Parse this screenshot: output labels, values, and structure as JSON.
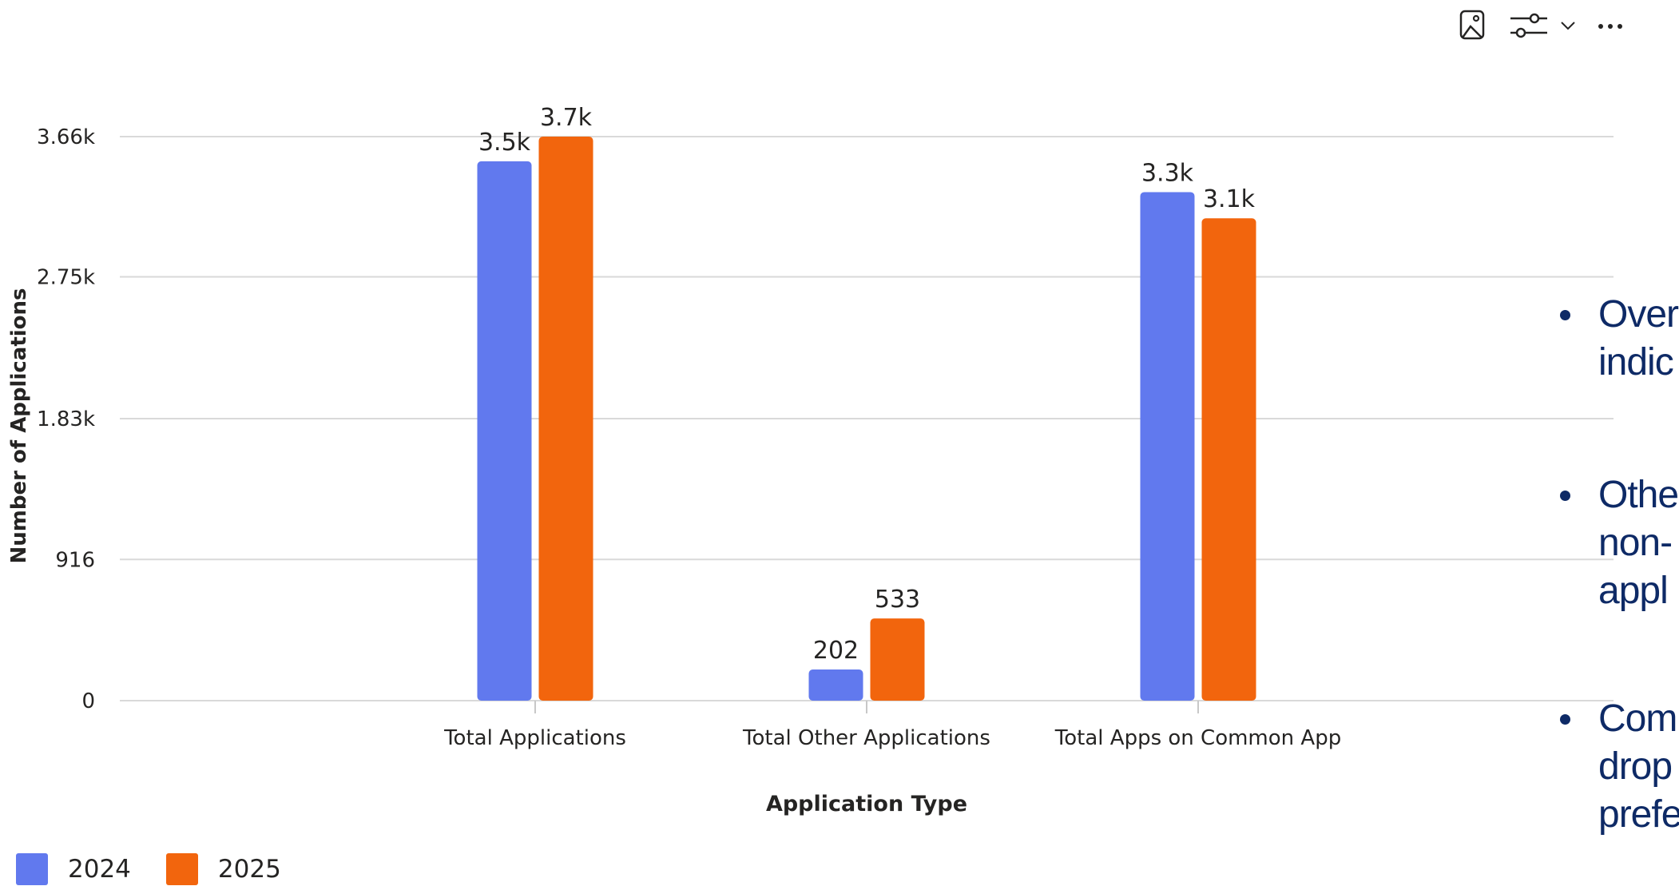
{
  "toolbar": {
    "icons": [
      "image-icon",
      "filter-sliders-icon",
      "chevron-down-icon",
      "more-options-icon"
    ]
  },
  "chart_data": {
    "type": "bar",
    "categories": [
      "Total Applications",
      "Total Other Applications",
      "Total Apps on Common App"
    ],
    "series": [
      {
        "name": "2024",
        "color": "#6179ee",
        "values": [
          3500,
          202,
          3300
        ],
        "labels": [
          "3.5k",
          "202",
          "3.3k"
        ]
      },
      {
        "name": "2025",
        "color": "#f2650d",
        "values": [
          3660,
          533,
          3130
        ],
        "labels": [
          "3.7k",
          "533",
          "3.1k"
        ]
      }
    ],
    "xlabel": "Application Type",
    "ylabel": "Number of Applications",
    "ylim": [
      0,
      3660
    ],
    "yticks": [
      0,
      916,
      1830,
      2750,
      3660
    ],
    "ytick_labels": [
      "0",
      "916",
      "1.83k",
      "2.75k",
      "3.66k"
    ],
    "grid": true,
    "legend": "bottom-left"
  },
  "bullets": [
    {
      "text": "Over",
      "text2": "indic"
    },
    {
      "text": "Othe",
      "text2": "non-",
      "text3": "appl"
    },
    {
      "text": "Com",
      "text2": "drop",
      "text3": "prefe"
    }
  ]
}
